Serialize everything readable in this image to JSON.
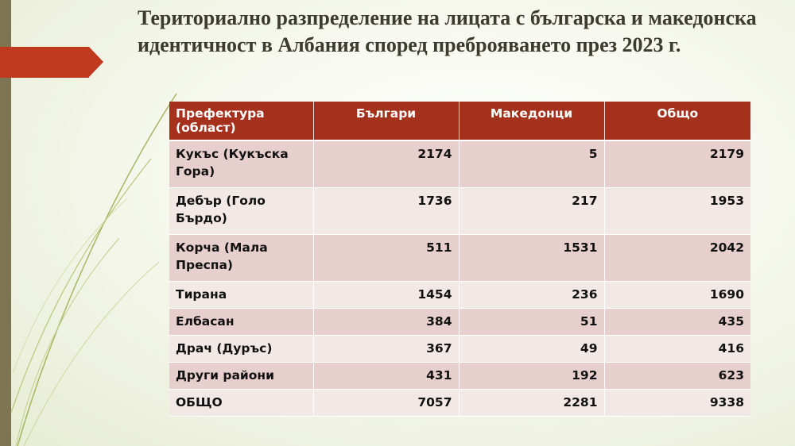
{
  "title": "Териториално разпределение на лицата с българска и македонска идентичност в Албания според преброяването през 2023 г.",
  "colors": {
    "header": "#a5301c",
    "row_odd": "#e6cfcc",
    "row_even": "#f2e8e6",
    "accent_arrow": "#c0391e",
    "left_bar": "#7d7452"
  },
  "table": {
    "headers": [
      "Префектура (област)",
      "Българи",
      "Македонци",
      "Общо"
    ],
    "rows": [
      [
        "Кукъс (Кукъска Гора)",
        "2174",
        "5",
        "2179"
      ],
      [
        "Дебър (Голо Бърдо)",
        "1736",
        "217",
        "1953"
      ],
      [
        "Корча (Мала Преспа)",
        "511",
        "1531",
        "2042"
      ],
      [
        "Тирана",
        "1454",
        "236",
        "1690"
      ],
      [
        "Елбасан",
        "384",
        "51",
        "435"
      ],
      [
        "Драч (Дуръс)",
        "367",
        "49",
        "416"
      ],
      [
        "Други райони",
        "431",
        "192",
        "623"
      ],
      [
        "ОБЩО",
        "7057",
        "2281",
        "9338"
      ]
    ]
  }
}
